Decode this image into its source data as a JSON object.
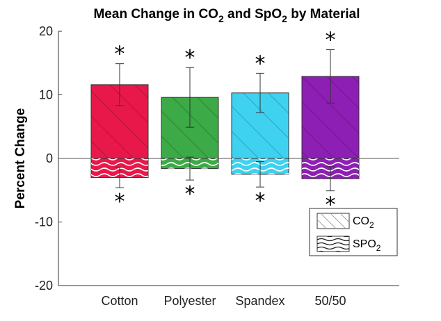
{
  "chart_data": {
    "type": "bar",
    "title_parts": [
      {
        "text": "Mean Change in CO"
      },
      {
        "text": "2",
        "sub": true
      },
      {
        "text": " and SpO"
      },
      {
        "text": "2",
        "sub": true
      },
      {
        "text": " by Material"
      }
    ],
    "ylabel": "Percent Change",
    "xlabel": "",
    "ylim": [
      -20,
      20
    ],
    "yticks": [
      -20,
      -10,
      0,
      10,
      20
    ],
    "categories": [
      "Cotton",
      "Polyester",
      "Spandex",
      "50/50"
    ],
    "colors": [
      "#e8194a",
      "#3caa46",
      "#3ed2f0",
      "#8e1fb4"
    ],
    "series": [
      {
        "name": "CO2",
        "label_base": "CO",
        "label_sub": "2",
        "pattern": "diagonal-hatch",
        "values": [
          11.6,
          9.6,
          10.3,
          12.9
        ],
        "error": [
          3.3,
          4.7,
          3.1,
          4.2
        ],
        "significant": [
          true,
          true,
          true,
          true
        ]
      },
      {
        "name": "SPO2",
        "label_base": "SPO",
        "label_sub": "2",
        "pattern": "wave",
        "values": [
          -3.0,
          -1.6,
          -2.5,
          -3.2
        ],
        "error": [
          1.6,
          1.8,
          2.0,
          1.9
        ],
        "significant": [
          true,
          true,
          true,
          true
        ]
      }
    ],
    "significance_marker": "*",
    "legend_position": "bottom-right"
  }
}
